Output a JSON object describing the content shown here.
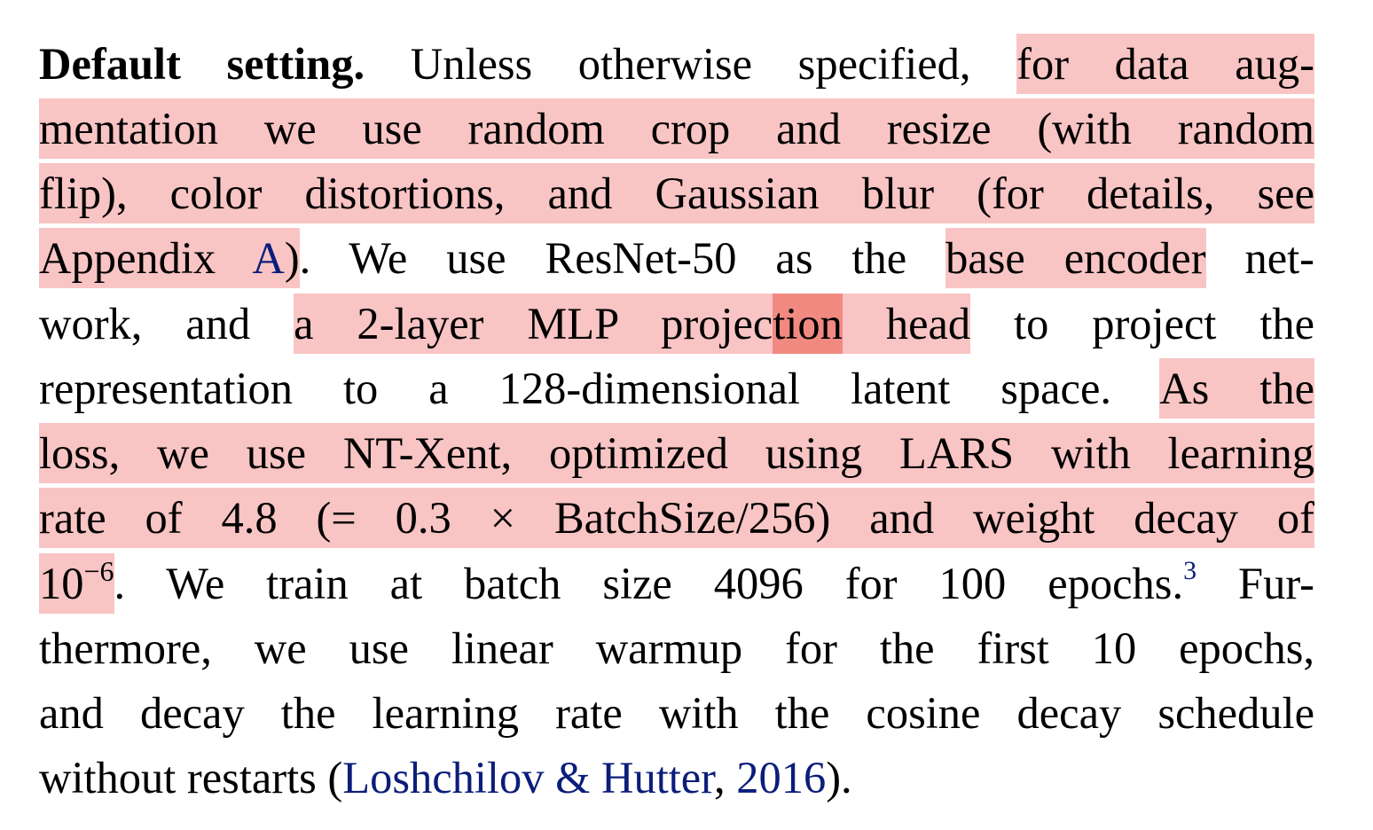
{
  "paragraph": {
    "l1": {
      "heading": "Default setting.",
      "plain": " Unless otherwise specified, ",
      "hl": "for data aug-"
    },
    "l2": {
      "hl": "mentation we use random crop and resize (with random"
    },
    "l3": {
      "hl": "flip), color distortions, and Gaussian blur (for details, see"
    },
    "l4": {
      "hl_a": "Appendix ",
      "link": "A",
      "hl_b": ")",
      "plain_a": ". We use ResNet-50 as the ",
      "hl_c": "base encoder",
      "plain_b": " net-"
    },
    "l5": {
      "plain_a": "work, and ",
      "hl_a": "a 2-layer MLP projec",
      "hl_strong": "tion",
      "hl_b": " head",
      "plain_b": " to project the"
    },
    "l6": {
      "plain": "representation to a 128-dimensional latent space. ",
      "hl": "As the"
    },
    "l7": {
      "hl": "loss, we use NT-Xent, optimized using LARS with learning"
    },
    "l8": {
      "hl": "rate of 4.8 (= 0.3 × BatchSize/256) and weight decay of"
    },
    "l9": {
      "hl_base": "10",
      "hl_exp": "−6",
      "plain_a": ". We train at batch size 4096 for 100 epochs.",
      "footnote": "3",
      "plain_b": " Fur-"
    },
    "l10": {
      "plain": "thermore, we use linear warmup for the first 10 epochs,"
    },
    "l11": {
      "plain": "and decay the learning rate with the cosine decay schedule"
    },
    "l12": {
      "plain_a": "without restarts (",
      "link_a": "Loshchilov & Hutter",
      "plain_b": ", ",
      "link_b": "2016",
      "plain_c": ")."
    }
  },
  "colors": {
    "highlight": "#f9c4c4",
    "highlight_strong": "#f08a80",
    "link": "#0b1d7a",
    "text": "#000000"
  }
}
